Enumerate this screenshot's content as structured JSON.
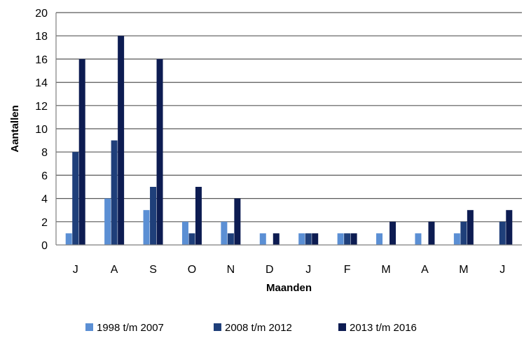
{
  "chart_data": {
    "type": "bar",
    "categories": [
      "J",
      "A",
      "S",
      "O",
      "N",
      "D",
      "J",
      "F",
      "M",
      "A",
      "M",
      "J"
    ],
    "series": [
      {
        "name": "1998 t/m 2007",
        "color": "#5b8fd4",
        "values": [
          1,
          4,
          3,
          2,
          2,
          1,
          1,
          1,
          1,
          1,
          1,
          0
        ]
      },
      {
        "name": "2008 t/m 2012",
        "color": "#1f3f7a",
        "values": [
          8,
          9,
          5,
          1,
          1,
          0,
          1,
          1,
          0,
          0,
          2,
          2
        ]
      },
      {
        "name": "2013 t/m 2016",
        "color": "#0d1c52",
        "values": [
          16,
          18,
          16,
          5,
          4,
          1,
          1,
          1,
          2,
          2,
          3,
          3
        ]
      }
    ],
    "xlabel": "Maanden",
    "ylabel": "Aantallen",
    "ylim": [
      0,
      20
    ],
    "yticks": [
      0,
      2,
      4,
      6,
      8,
      10,
      12,
      14,
      16,
      18,
      20
    ],
    "grid": true,
    "legend_position": "bottom"
  }
}
